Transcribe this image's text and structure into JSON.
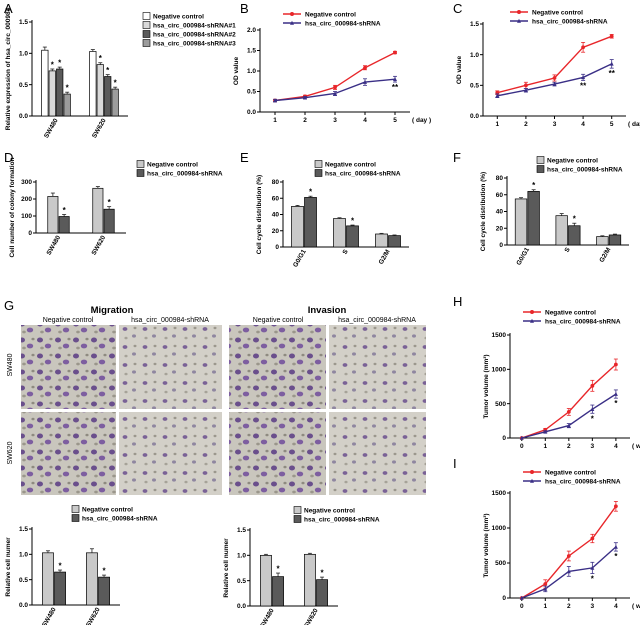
{
  "figure": {
    "panel_letters": [
      "A",
      "B",
      "C",
      "D",
      "E",
      "F",
      "G",
      "H",
      "I"
    ],
    "migration_title": "Migration",
    "invasion_title": "Invasion",
    "image_col_labels": [
      "Negative control",
      "hsa_circ_000984-shRNA",
      "Negative control",
      "hsa_circ_000984-shRNA"
    ],
    "image_row_labels": [
      "SW480",
      "SW620"
    ]
  },
  "colors": {
    "red": "#e8262a",
    "purple": "#3a2f86",
    "white_bar": "#ffffff",
    "light_bar": "#d9d9d9",
    "mid_bar": "#9c9c9c",
    "grey_bar": "#c9c9c9",
    "dark_bar": "#5a5a5a",
    "ebar": "#222222"
  },
  "chart_data": [
    {
      "id": "A",
      "type": "bar",
      "ylabel": "Relative expression of hsa_circ_000984",
      "ylim": [
        0,
        1.5
      ],
      "yticks": [
        "0.0",
        "0.5",
        "1.0",
        "1.5"
      ],
      "categories": [
        "SW480",
        "SW620"
      ],
      "series": [
        {
          "name": "Negative control",
          "values": [
            1.05,
            1.03
          ],
          "err": [
            0.05,
            0.03
          ],
          "stars": [
            "",
            ""
          ]
        },
        {
          "name": "hsa_circ_000984-shRNA#1",
          "values": [
            0.72,
            0.82
          ],
          "err": [
            0.03,
            0.03
          ],
          "stars": [
            "*",
            "*"
          ]
        },
        {
          "name": "hsa_circ_000984-shRNA#2",
          "values": [
            0.75,
            0.63
          ],
          "err": [
            0.03,
            0.03
          ],
          "stars": [
            "*",
            "*"
          ]
        },
        {
          "name": "hsa_circ_000984-shRNA#3",
          "values": [
            0.35,
            0.43
          ],
          "err": [
            0.03,
            0.03
          ],
          "stars": [
            "*",
            "*"
          ]
        }
      ]
    },
    {
      "id": "B",
      "type": "line",
      "ylabel": "OD value",
      "xunit": "( day )",
      "x": [
        1,
        2,
        3,
        4,
        5
      ],
      "xlim": [
        0.5,
        5.5
      ],
      "ylim": [
        0,
        2.0
      ],
      "yticks": [
        "0.0",
        "0.5",
        "1.0",
        "1.5",
        "2.0"
      ],
      "xticks": [
        "1",
        "2",
        "3",
        "4",
        "5"
      ],
      "series": [
        {
          "name": "Negative control",
          "values": [
            0.28,
            0.38,
            0.6,
            1.08,
            1.45
          ],
          "err": [
            0.03,
            0.03,
            0.05,
            0.05,
            0.03
          ]
        },
        {
          "name": "hsa_circ_000984-shRNA",
          "values": [
            0.28,
            0.35,
            0.45,
            0.73,
            0.8
          ],
          "err": [
            0.03,
            0.03,
            0.05,
            0.08,
            0.07
          ]
        }
      ],
      "stars": [
        {
          "x": 5,
          "text": "**"
        }
      ]
    },
    {
      "id": "C",
      "type": "line",
      "ylabel": "OD value",
      "xunit": "( day )",
      "x": [
        1,
        2,
        3,
        4,
        5
      ],
      "xlim": [
        0.5,
        5.5
      ],
      "ylim": [
        0,
        1.5
      ],
      "yticks": [
        "0.0",
        "0.5",
        "1.0",
        "1.5"
      ],
      "xticks": [
        "1",
        "2",
        "3",
        "4",
        "5"
      ],
      "series": [
        {
          "name": "Negative control",
          "values": [
            0.38,
            0.5,
            0.62,
            1.12,
            1.3
          ],
          "err": [
            0.03,
            0.05,
            0.05,
            0.08,
            0.03
          ]
        },
        {
          "name": "hsa_circ_000984-shRNA",
          "values": [
            0.33,
            0.42,
            0.52,
            0.63,
            0.85
          ],
          "err": [
            0.03,
            0.03,
            0.03,
            0.05,
            0.07
          ]
        }
      ],
      "stars": [
        {
          "x": 4,
          "text": "**"
        },
        {
          "x": 5,
          "text": "**"
        }
      ]
    },
    {
      "id": "D",
      "type": "bar",
      "ylabel": "Cell number of colony formation",
      "ylim": [
        0,
        300
      ],
      "yticks": [
        "0",
        "100",
        "200",
        "300"
      ],
      "categories": [
        "SW480",
        "SW620"
      ],
      "series": [
        {
          "name": "Negative control",
          "values": [
            215,
            263
          ],
          "err": [
            20,
            10
          ],
          "stars": [
            "",
            ""
          ]
        },
        {
          "name": "hsa_circ_000984-shRNA",
          "values": [
            97,
            140
          ],
          "err": [
            12,
            15
          ],
          "stars": [
            "*",
            "*"
          ]
        }
      ]
    },
    {
      "id": "E",
      "type": "bar",
      "ylabel": "Cell cycle distribution (%)",
      "ylim": [
        0,
        80
      ],
      "yticks": [
        "0",
        "20",
        "40",
        "60",
        "80"
      ],
      "categories": [
        "G0/G1",
        "S",
        "G2/M"
      ],
      "series": [
        {
          "name": "Negative control",
          "values": [
            50,
            35,
            16
          ],
          "err": [
            1.2,
            1.0,
            0.8
          ],
          "stars": [
            "",
            "",
            ""
          ]
        },
        {
          "name": "hsa_circ_000984-shRNA",
          "values": [
            61,
            26,
            14
          ],
          "err": [
            1.5,
            1.0,
            0.8
          ],
          "stars": [
            "*",
            "*",
            ""
          ]
        }
      ]
    },
    {
      "id": "F",
      "type": "bar",
      "ylabel": "Cell cycle distribution (%)",
      "ylim": [
        0,
        80
      ],
      "yticks": [
        "0",
        "20",
        "40",
        "60",
        "80"
      ],
      "categories": [
        "G0/G1",
        "S",
        "G2/M"
      ],
      "series": [
        {
          "name": "Negative control",
          "values": [
            55,
            35,
            10
          ],
          "err": [
            1.5,
            2.5,
            1.0
          ],
          "stars": [
            "",
            "",
            ""
          ]
        },
        {
          "name": "hsa_circ_000984-shRNA",
          "values": [
            64,
            23,
            12
          ],
          "err": [
            2.0,
            3.0,
            1.0
          ],
          "stars": [
            "*",
            "*",
            ""
          ]
        }
      ]
    },
    {
      "id": "G-migration",
      "type": "bar",
      "ylabel": "Relative cell numer",
      "ylim": [
        0,
        1.5
      ],
      "yticks": [
        "0.0",
        "0.5",
        "1.0",
        "1.5"
      ],
      "categories": [
        "SW480",
        "SW620"
      ],
      "series": [
        {
          "name": "Negative control",
          "values": [
            1.03,
            1.03
          ],
          "err": [
            0.04,
            0.08
          ],
          "stars": [
            "",
            ""
          ]
        },
        {
          "name": "hsa_circ_000984-shRNA",
          "values": [
            0.65,
            0.55
          ],
          "err": [
            0.04,
            0.04
          ],
          "stars": [
            "*",
            "*"
          ]
        }
      ]
    },
    {
      "id": "G-invasion",
      "type": "bar",
      "ylabel": "Relative cell numer",
      "ylim": [
        0,
        1.5
      ],
      "yticks": [
        "0.0",
        "0.5",
        "1.0",
        "1.5"
      ],
      "categories": [
        "SW480",
        "SW620"
      ],
      "series": [
        {
          "name": "Negative control",
          "values": [
            1.0,
            1.02
          ],
          "err": [
            0.02,
            0.02
          ],
          "stars": [
            "",
            ""
          ]
        },
        {
          "name": "hsa_circ_000984-shRNA",
          "values": [
            0.58,
            0.52
          ],
          "err": [
            0.07,
            0.05
          ],
          "stars": [
            "*",
            "*"
          ]
        }
      ]
    },
    {
      "id": "H",
      "type": "line",
      "ylabel": "Tumor volume (mm³)",
      "xunit": "( week )",
      "x": [
        0,
        1,
        2,
        3,
        4
      ],
      "xlim": [
        -0.5,
        4.6
      ],
      "ylim": [
        0,
        1500
      ],
      "yticks": [
        "0",
        "500",
        "1000",
        "1500"
      ],
      "xticks": [
        "0",
        "1",
        "2",
        "3",
        "4"
      ],
      "series": [
        {
          "name": "Negative control",
          "values": [
            0,
            120,
            380,
            760,
            1070
          ],
          "err": [
            0,
            20,
            50,
            80,
            80
          ]
        },
        {
          "name": "hsa_circ_000984-shRNA",
          "values": [
            0,
            90,
            180,
            420,
            640
          ],
          "err": [
            0,
            15,
            30,
            60,
            60
          ]
        }
      ],
      "stars": [
        {
          "x": 3,
          "text": "*"
        },
        {
          "x": 4,
          "text": "*"
        }
      ]
    },
    {
      "id": "I",
      "type": "line",
      "ylabel": "Tumor volume (mm³)",
      "xunit": "( week )",
      "x": [
        0,
        1,
        2,
        3,
        4
      ],
      "xlim": [
        -0.5,
        4.6
      ],
      "ylim": [
        0,
        1500
      ],
      "yticks": [
        "0",
        "500",
        "1000",
        "1500"
      ],
      "xticks": [
        "0",
        "1",
        "2",
        "3",
        "4"
      ],
      "series": [
        {
          "name": "Negative control",
          "values": [
            0,
            200,
            600,
            850,
            1310
          ],
          "err": [
            0,
            60,
            70,
            60,
            70
          ]
        },
        {
          "name": "hsa_circ_000984-shRNA",
          "values": [
            0,
            130,
            380,
            430,
            730
          ],
          "err": [
            0,
            40,
            70,
            80,
            60
          ]
        }
      ],
      "stars": [
        {
          "x": 3,
          "text": "*"
        },
        {
          "x": 4,
          "text": "*"
        }
      ]
    }
  ]
}
